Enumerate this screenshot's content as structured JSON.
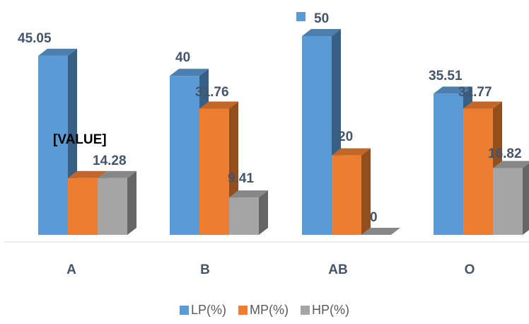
{
  "chart_data": {
    "type": "bar",
    "categories": [
      "A",
      "B",
      "AB",
      "O"
    ],
    "series": [
      {
        "name": "LP(%)",
        "values": [
          45.05,
          40,
          50,
          35.51
        ],
        "color": "#5b9bd5"
      },
      {
        "name": "MP(%)",
        "values": [
          14.28,
          31.76,
          20,
          31.77
        ],
        "color": "#ed7d31"
      },
      {
        "name": "HP(%)",
        "values": [
          14.28,
          9.41,
          0,
          16.82
        ],
        "color": "#a5a5a5"
      }
    ],
    "data_labels": [
      [
        "45.05",
        "40",
        "50",
        "35.51"
      ],
      [
        "[VALUE]",
        "31.76",
        "20",
        "31.77"
      ],
      [
        "14.28",
        "9.41",
        "0",
        "16.82"
      ]
    ],
    "ylim": [
      0,
      50
    ],
    "legend_position": "bottom",
    "style": "3d-clustered-column",
    "grid": false
  }
}
